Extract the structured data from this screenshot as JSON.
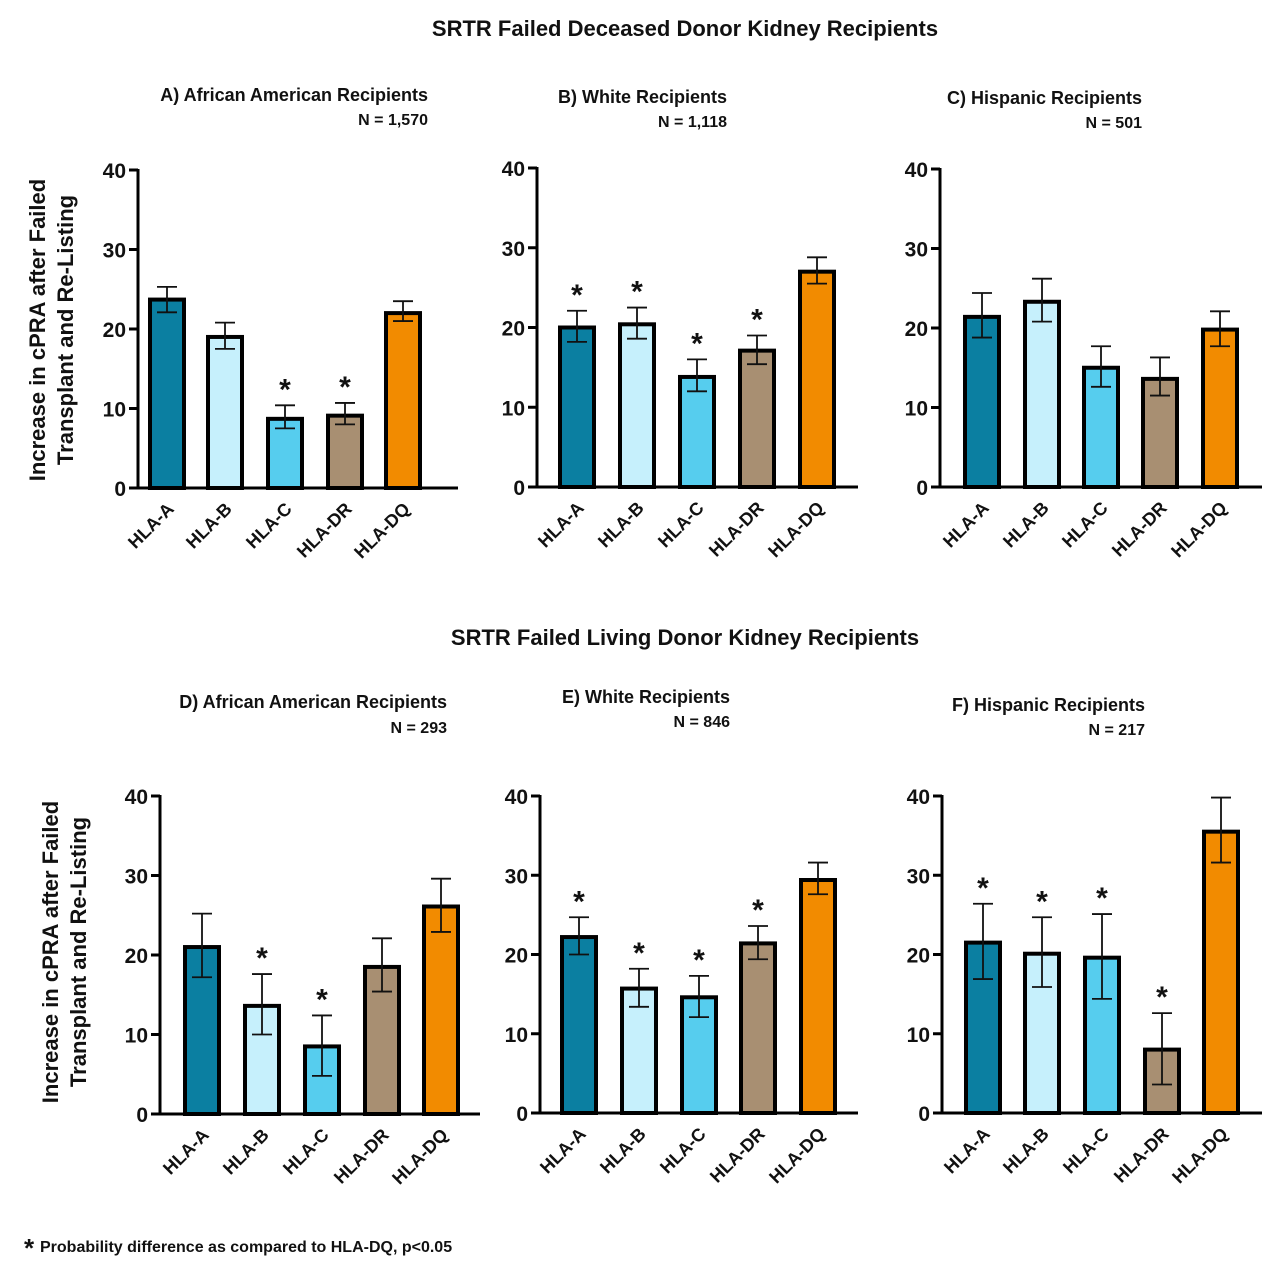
{
  "figure": {
    "section_titles": [
      "SRTR Failed Deceased Donor Kidney Recipients",
      "SRTR Failed Living Donor Kidney Recipients"
    ],
    "ylabel_line1": "Increase in cPRA after Failed",
    "ylabel_line2": "Transplant and Re-Listing",
    "footnote_star": "*",
    "footnote": "Probability difference as compared to HLA-DQ, p<0.05"
  },
  "colors": {
    "HLA-A": "#0b7fa1",
    "HLA-B": "#c6f0fc",
    "HLA-C": "#56cdee",
    "HLA-DR": "#a88f72",
    "HLA-DQ": "#f28b00"
  },
  "chart_data": [
    {
      "type": "bar",
      "title": "A) African American Recipients",
      "n_label": "N = 1,570",
      "section": "SRTR Failed Deceased Donor Kidney Recipients",
      "categories": [
        "HLA-A",
        "HLA-B",
        "HLA-C",
        "HLA-DR",
        "HLA-DQ"
      ],
      "values": [
        23.7,
        19.0,
        8.7,
        9.1,
        22.0
      ],
      "error_upper": [
        25.3,
        20.8,
        10.4,
        10.7,
        23.5
      ],
      "error_lower": [
        22.1,
        17.5,
        7.5,
        8.0,
        21.0
      ],
      "significant": [
        false,
        false,
        true,
        true,
        false
      ],
      "xlabel": "",
      "ylabel": "Increase in cPRA after Failed Transplant and Re-Listing",
      "ylim": [
        0,
        40
      ],
      "yticks": [
        0,
        10,
        20,
        30,
        40
      ],
      "grid": false
    },
    {
      "type": "bar",
      "title": "B) White Recipients",
      "n_label": "N = 1,118",
      "section": "SRTR Failed Deceased Donor Kidney Recipients",
      "categories": [
        "HLA-A",
        "HLA-B",
        "HLA-C",
        "HLA-DR",
        "HLA-DQ"
      ],
      "values": [
        20.0,
        20.4,
        13.8,
        17.1,
        27.0
      ],
      "error_upper": [
        22.1,
        22.5,
        16.0,
        19.0,
        28.8
      ],
      "error_lower": [
        18.2,
        18.6,
        12.0,
        15.4,
        25.5
      ],
      "significant": [
        true,
        true,
        true,
        true,
        false
      ],
      "xlabel": "",
      "ylabel": "",
      "ylim": [
        0,
        40
      ],
      "yticks": [
        0,
        10,
        20,
        30,
        40
      ],
      "grid": false
    },
    {
      "type": "bar",
      "title": "C) Hispanic Recipients",
      "n_label": "N = 501",
      "section": "SRTR Failed Deceased Donor Kidney Recipients",
      "categories": [
        "HLA-A",
        "HLA-B",
        "HLA-C",
        "HLA-DR",
        "HLA-DQ"
      ],
      "values": [
        21.4,
        23.3,
        15.0,
        13.6,
        19.8
      ],
      "error_upper": [
        24.4,
        26.2,
        17.7,
        16.3,
        22.1
      ],
      "error_lower": [
        18.8,
        20.8,
        12.6,
        11.5,
        17.7
      ],
      "significant": [
        false,
        false,
        false,
        false,
        false
      ],
      "xlabel": "",
      "ylabel": "",
      "ylim": [
        0,
        40
      ],
      "yticks": [
        0,
        10,
        20,
        30,
        40
      ],
      "grid": false
    },
    {
      "type": "bar",
      "title": "D) African American Recipients",
      "n_label": "N = 293",
      "section": "SRTR Failed Living Donor Kidney Recipients",
      "categories": [
        "HLA-A",
        "HLA-B",
        "HLA-C",
        "HLA-DR",
        "HLA-DQ"
      ],
      "values": [
        21.0,
        13.6,
        8.5,
        18.5,
        26.1
      ],
      "error_upper": [
        25.2,
        17.6,
        12.4,
        22.1,
        29.6
      ],
      "error_lower": [
        17.2,
        10.0,
        4.8,
        15.4,
        22.9
      ],
      "significant": [
        false,
        true,
        true,
        false,
        false
      ],
      "xlabel": "",
      "ylabel": "Increase in cPRA after Failed Transplant and Re-Listing",
      "ylim": [
        0,
        40
      ],
      "yticks": [
        0,
        10,
        20,
        30,
        40
      ],
      "grid": false
    },
    {
      "type": "bar",
      "title": "E) White Recipients",
      "n_label": "N = 846",
      "section": "SRTR Failed Living Donor Kidney Recipients",
      "categories": [
        "HLA-A",
        "HLA-B",
        "HLA-C",
        "HLA-DR",
        "HLA-DQ"
      ],
      "values": [
        22.2,
        15.7,
        14.6,
        21.4,
        29.4
      ],
      "error_upper": [
        24.7,
        18.2,
        17.3,
        23.6,
        31.6
      ],
      "error_lower": [
        20.0,
        13.4,
        12.1,
        19.4,
        27.6
      ],
      "significant": [
        true,
        true,
        true,
        true,
        false
      ],
      "xlabel": "",
      "ylabel": "",
      "ylim": [
        0,
        40
      ],
      "yticks": [
        0,
        10,
        20,
        30,
        40
      ],
      "grid": false
    },
    {
      "type": "bar",
      "title": "F) Hispanic Recipients",
      "n_label": "N = 217",
      "section": "SRTR Failed Living Donor Kidney Recipients",
      "categories": [
        "HLA-A",
        "HLA-B",
        "HLA-C",
        "HLA-DR",
        "HLA-DQ"
      ],
      "values": [
        21.5,
        20.1,
        19.6,
        8.0,
        35.5
      ],
      "error_upper": [
        26.4,
        24.7,
        25.1,
        12.6,
        39.8
      ],
      "error_lower": [
        16.9,
        15.9,
        14.4,
        3.6,
        31.6
      ],
      "significant": [
        true,
        true,
        true,
        true,
        false
      ],
      "xlabel": "",
      "ylabel": "",
      "ylim": [
        0,
        40
      ],
      "yticks": [
        0,
        10,
        20,
        30,
        40
      ],
      "grid": false
    }
  ]
}
